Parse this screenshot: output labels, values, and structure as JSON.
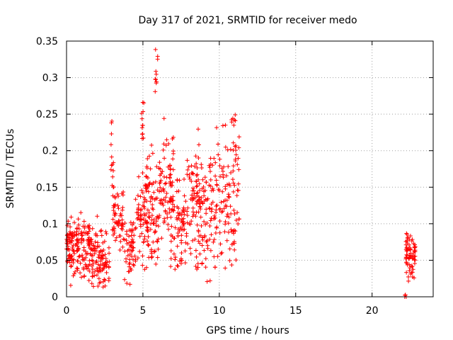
{
  "chart_data": {
    "type": "scatter",
    "title": "Day 317 of 2021, SRMTID for receiver medo",
    "xlabel": "GPS time / hours",
    "ylabel": "SRMTID / TECUs",
    "xlim": [
      0,
      24
    ],
    "ylim": [
      0,
      0.35
    ],
    "x_ticks": [
      0,
      5,
      10,
      15,
      20
    ],
    "x_tick_labels": [
      "0",
      "5",
      "10",
      "15",
      "20"
    ],
    "y_ticks": [
      0,
      0.05,
      0.1,
      0.15,
      0.2,
      0.25,
      0.3,
      0.35
    ],
    "y_tick_labels": [
      "0",
      "0.05",
      "0.1",
      "0.15",
      "0.2",
      "0.25",
      "0.3",
      "0.35"
    ],
    "grid": true,
    "marker": "plus",
    "marker_color": "#ff0000",
    "clusters": [
      {
        "x_range": [
          0.0,
          0.5
        ],
        "y_center": 0.068,
        "y_spread": 0.022,
        "n": 60
      },
      {
        "x_range": [
          0.5,
          1.5
        ],
        "y_center": 0.072,
        "y_spread": 0.022,
        "n": 90
      },
      {
        "x_range": [
          1.4,
          2.2
        ],
        "y_center": 0.058,
        "y_spread": 0.02,
        "n": 70
      },
      {
        "x_range": [
          2.2,
          2.8
        ],
        "y_center": 0.055,
        "y_spread": 0.018,
        "n": 50
      },
      {
        "x_range": [
          2.9,
          3.1
        ],
        "y_center": 0.18,
        "y_spread": 0.025,
        "n": 14
      },
      {
        "x_range": [
          3.0,
          3.8
        ],
        "y_center": 0.105,
        "y_spread": 0.022,
        "n": 60
      },
      {
        "x_range": [
          3.8,
          4.6
        ],
        "y_center": 0.07,
        "y_spread": 0.025,
        "n": 60
      },
      {
        "x_range": [
          4.6,
          5.4
        ],
        "y_center": 0.11,
        "y_spread": 0.03,
        "n": 70
      },
      {
        "x_range": [
          4.9,
          5.1
        ],
        "y_center": 0.245,
        "y_spread": 0.022,
        "n": 12
      },
      {
        "x_range": [
          5.2,
          6.0
        ],
        "y_center": 0.12,
        "y_spread": 0.04,
        "n": 70
      },
      {
        "x_range": [
          5.8,
          6.0
        ],
        "y_center": 0.3,
        "y_spread": 0.025,
        "n": 10
      },
      {
        "x_range": [
          6.0,
          7.0
        ],
        "y_center": 0.15,
        "y_spread": 0.035,
        "n": 80
      },
      {
        "x_range": [
          6.8,
          7.8
        ],
        "y_center": 0.095,
        "y_spread": 0.035,
        "n": 80
      },
      {
        "x_range": [
          7.8,
          8.8
        ],
        "y_center": 0.13,
        "y_spread": 0.04,
        "n": 90
      },
      {
        "x_range": [
          8.8,
          9.8
        ],
        "y_center": 0.115,
        "y_spread": 0.04,
        "n": 80
      },
      {
        "x_range": [
          9.8,
          11.3
        ],
        "y_center": 0.14,
        "y_spread": 0.045,
        "n": 110
      },
      {
        "x_range": [
          10.8,
          11.1
        ],
        "y_center": 0.225,
        "y_spread": 0.02,
        "n": 8
      },
      {
        "x_range": [
          22.1,
          22.3
        ],
        "y_center": 0.0,
        "y_spread": 0.0015,
        "n": 4
      },
      {
        "x_range": [
          22.2,
          22.9
        ],
        "y_center": 0.058,
        "y_spread": 0.015,
        "n": 70
      }
    ]
  }
}
